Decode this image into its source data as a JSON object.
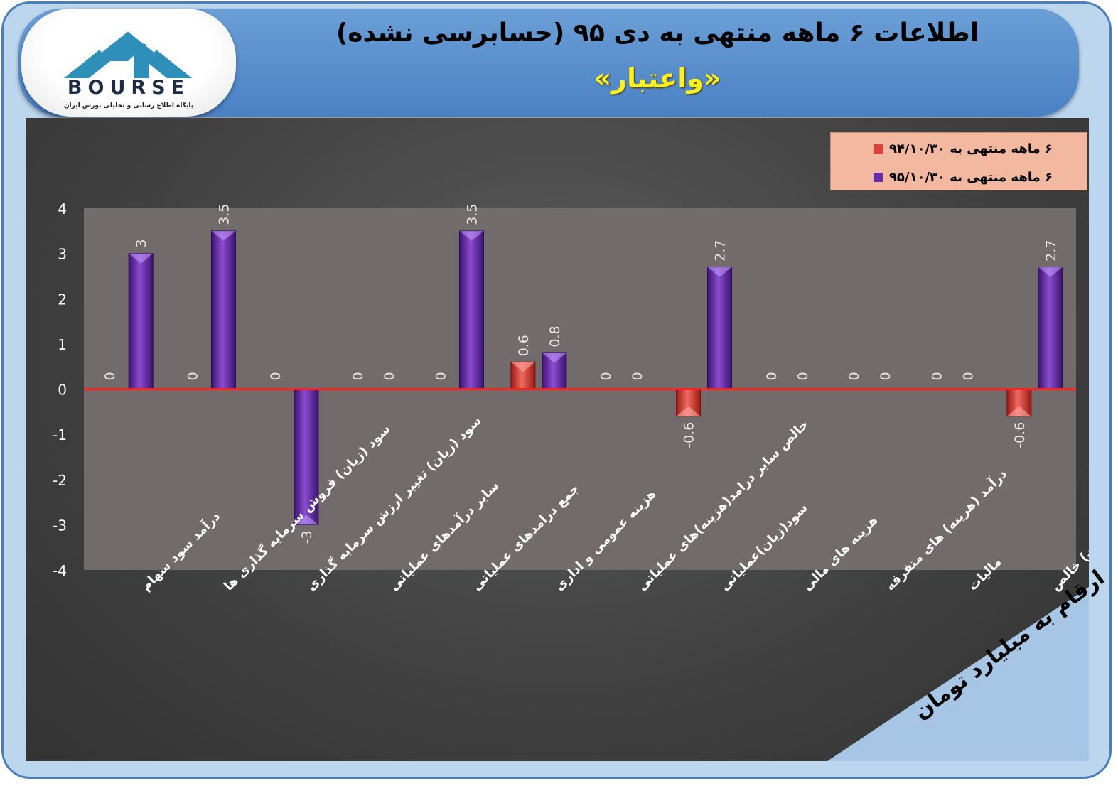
{
  "header": {
    "title": "اطلاعات ۶ ماهه منتهی به دی ۹۵ (حسابرسی نشده)",
    "company": "«واعتبار»"
  },
  "logo": {
    "name": "BOURSE",
    "tagline": "پایگاه اطلاع رسانی و تحلیلی بورس ایران"
  },
  "unit_note": "ارقام به میلیارد تومان",
  "colors": {
    "series1": "#e0403c",
    "series2": "#6a2fa8",
    "zero_line": "#ff2020"
  },
  "chart_data": {
    "type": "bar",
    "categories": [
      "درآمد سود سهام",
      "سود (زیان) فروش سرمایه گذاری ها",
      "سود (زیان) تغییر ارزش سرمایه گذاری",
      "سایر درآمدهای عملیاتی",
      "جمع درامدهای عملیاتی",
      "هزینه عمومی و اداری",
      "خالص سایر درامد(هزینه)های عملیاتی",
      "سود(زیان)عملیاتی",
      "هزینه های مالی",
      "درآمد (هزینه) های متفرقه",
      "مالیات",
      "سود(زیان) خالص"
    ],
    "series": [
      {
        "name": "۶ ماهه منتهی به ۹۴/۱۰/۳۰",
        "values": [
          0,
          0,
          0,
          0,
          0,
          0.6,
          0,
          -0.6,
          0,
          0,
          0,
          -0.6
        ],
        "labels": [
          "0",
          "0",
          "0",
          "0",
          "0",
          "0.6",
          "0",
          "-0.6",
          "0",
          "0",
          "0",
          "-0.6"
        ]
      },
      {
        "name": "۶ ماهه منتهی به ۹۵/۱۰/۳۰",
        "values": [
          3,
          3.5,
          -3,
          0,
          3.5,
          0.8,
          0,
          2.7,
          0,
          0,
          0,
          2.7
        ],
        "labels": [
          "3",
          "3.5",
          "-3",
          "0",
          "3.5",
          "0.8",
          "0",
          "2.7",
          "0",
          "0",
          "0",
          "2.7"
        ]
      }
    ],
    "ylim": [
      -4,
      4
    ],
    "yticks": [
      "4",
      "3",
      "2",
      "1",
      "0",
      "-1",
      "-2",
      "-3",
      "-4"
    ],
    "legend_position": "top-right",
    "grid": false
  }
}
